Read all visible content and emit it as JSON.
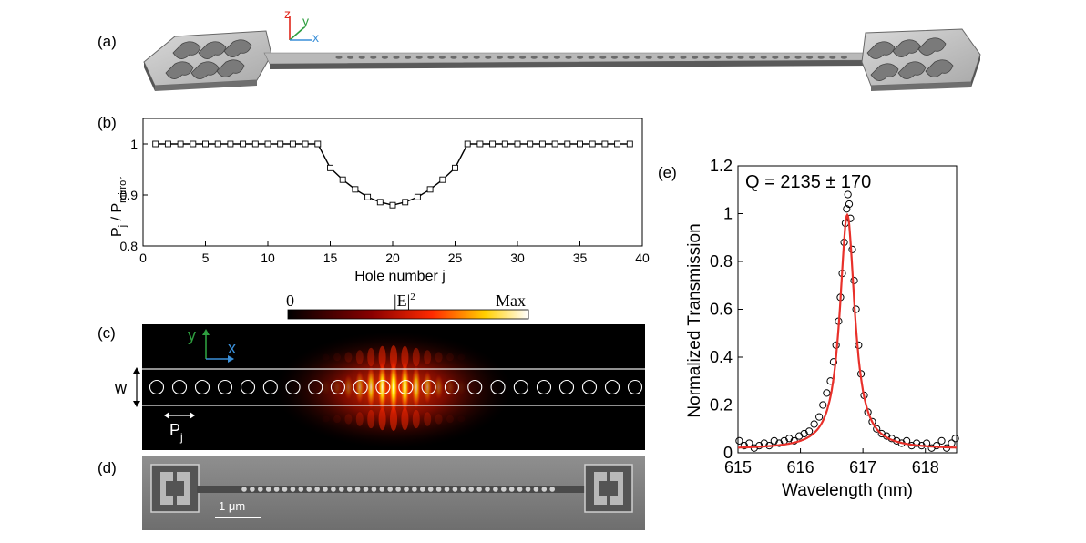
{
  "panels": {
    "a": {
      "label": "(a)",
      "axes": [
        "z",
        "y",
        "x"
      ],
      "colors": {
        "z": "#e0261b",
        "y": "#2e9e3f",
        "x": "#3a8fd8"
      }
    },
    "b": {
      "label": "(b)",
      "ylabel_main": "P",
      "ylabel_sub1": "j",
      "ylabel_mid": " / P",
      "ylabel_sub2": "mirror",
      "xlabel": "Hole number j"
    },
    "c": {
      "label": "(c)",
      "colorbar_min": "0",
      "colorbar_title": "|E|",
      "colorbar_sup": "2",
      "colorbar_max": "Max",
      "axis_y": "y",
      "axis_x": "x",
      "width_label": "w",
      "period_main": "P",
      "period_sub": "j"
    },
    "d": {
      "label": "(d)",
      "scalebar": "1 μm"
    },
    "e": {
      "label": "(e)",
      "annotation": "Q = 2135 ± 170",
      "ylabel": "Normalized Transmission",
      "xlabel": "Wavelength (nm)"
    }
  },
  "chart_data": [
    {
      "type": "line",
      "panel": "b",
      "xlabel": "Hole number j",
      "ylabel": "Pj / Pmirror",
      "xlim": [
        0,
        40
      ],
      "ylim": [
        0.8,
        1.05
      ],
      "xticks": [
        0,
        5,
        10,
        15,
        20,
        25,
        30,
        35,
        40
      ],
      "yticks": [
        0.8,
        0.9,
        1
      ],
      "marker": "square",
      "x": [
        1,
        2,
        3,
        4,
        5,
        6,
        7,
        8,
        9,
        10,
        11,
        12,
        13,
        14,
        15,
        16,
        17,
        18,
        19,
        20,
        21,
        22,
        23,
        24,
        25,
        26,
        27,
        28,
        29,
        30,
        31,
        32,
        33,
        34,
        35,
        36,
        37,
        38,
        39
      ],
      "y": [
        1,
        1,
        1,
        1,
        1,
        1,
        1,
        1,
        1,
        1,
        1,
        1,
        1,
        1,
        0.953,
        0.93,
        0.911,
        0.896,
        0.886,
        0.88,
        0.886,
        0.896,
        0.911,
        0.93,
        0.953,
        1,
        1,
        1,
        1,
        1,
        1,
        1,
        1,
        1,
        1,
        1,
        1,
        1,
        1
      ]
    },
    {
      "type": "scatter",
      "panel": "e",
      "xlabel": "Wavelength (nm)",
      "ylabel": "Normalized Transmission",
      "xlim": [
        615,
        618.5
      ],
      "ylim": [
        0,
        1.2
      ],
      "xticks": [
        615,
        616,
        617,
        618
      ],
      "yticks": [
        0,
        0.2,
        0.4,
        0.6,
        0.8,
        1,
        1.2
      ],
      "fit": {
        "type": "lorentzian",
        "center": 616.75,
        "fwhm": 0.29,
        "amplitude": 0.98,
        "baseline": 0.015,
        "color": "#e8302a"
      },
      "series": [
        {
          "marker": "open-circle",
          "x": [
            615.02,
            615.1,
            615.18,
            615.26,
            615.34,
            615.42,
            615.5,
            615.58,
            615.66,
            615.74,
            615.82,
            615.9,
            615.98,
            616.06,
            616.14,
            616.22,
            616.3,
            616.36,
            616.42,
            616.48,
            616.53,
            616.57,
            616.61,
            616.64,
            616.67,
            616.7,
            616.72,
            616.74,
            616.76,
            616.78,
            616.8,
            616.83,
            616.86,
            616.89,
            616.93,
            616.97,
            617.02,
            617.08,
            617.15,
            617.22,
            617.3,
            617.38,
            617.46,
            617.54,
            617.62,
            617.7,
            617.78,
            617.86,
            617.94,
            618.02,
            618.1,
            618.18,
            618.26,
            618.34,
            618.42,
            618.48
          ],
          "y": [
            0.05,
            0.03,
            0.04,
            0.02,
            0.03,
            0.04,
            0.03,
            0.05,
            0.04,
            0.05,
            0.06,
            0.05,
            0.07,
            0.08,
            0.09,
            0.12,
            0.15,
            0.2,
            0.25,
            0.3,
            0.38,
            0.45,
            0.55,
            0.65,
            0.75,
            0.88,
            0.96,
            1.02,
            1.08,
            1.04,
            0.98,
            0.85,
            0.72,
            0.6,
            0.45,
            0.33,
            0.24,
            0.17,
            0.13,
            0.1,
            0.08,
            0.07,
            0.06,
            0.05,
            0.04,
            0.05,
            0.03,
            0.04,
            0.03,
            0.04,
            0.02,
            0.03,
            0.05,
            0.02,
            0.04,
            0.06
          ]
        }
      ]
    }
  ]
}
